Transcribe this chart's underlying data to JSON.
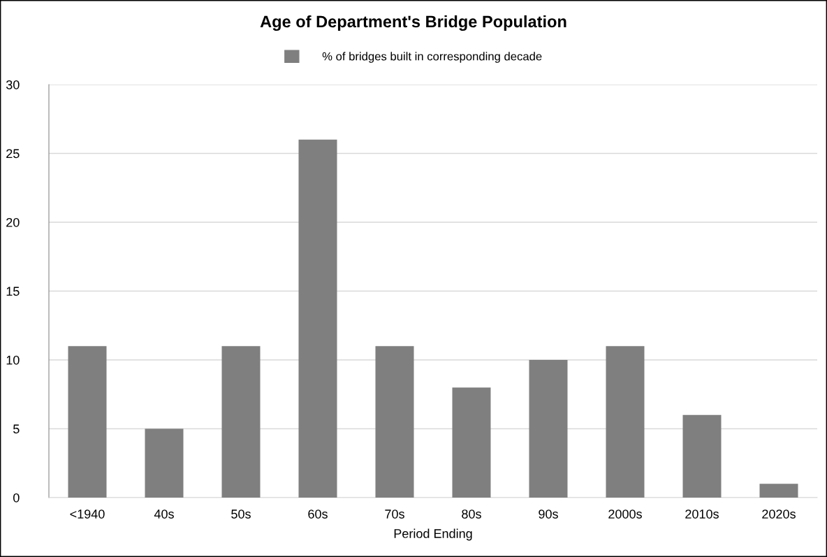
{
  "chart_data": {
    "type": "bar",
    "title": "Age of Department's Bridge Population",
    "xlabel": "Period Ending",
    "categories": [
      "<1940",
      "40s",
      "50s",
      "60s",
      "70s",
      "80s",
      "90s",
      "2000s",
      "2010s",
      "2020s"
    ],
    "series": [
      {
        "name": "% of bridges built in corresponding decade",
        "color": "#7f7f7f",
        "values": [
          11,
          5,
          11,
          26,
          11,
          8,
          10,
          11,
          6,
          1
        ]
      }
    ],
    "ylim": [
      0,
      30
    ],
    "yticks": [
      0,
      5,
      10,
      15,
      20,
      25,
      30
    ],
    "grid": "y",
    "legend": "top"
  }
}
